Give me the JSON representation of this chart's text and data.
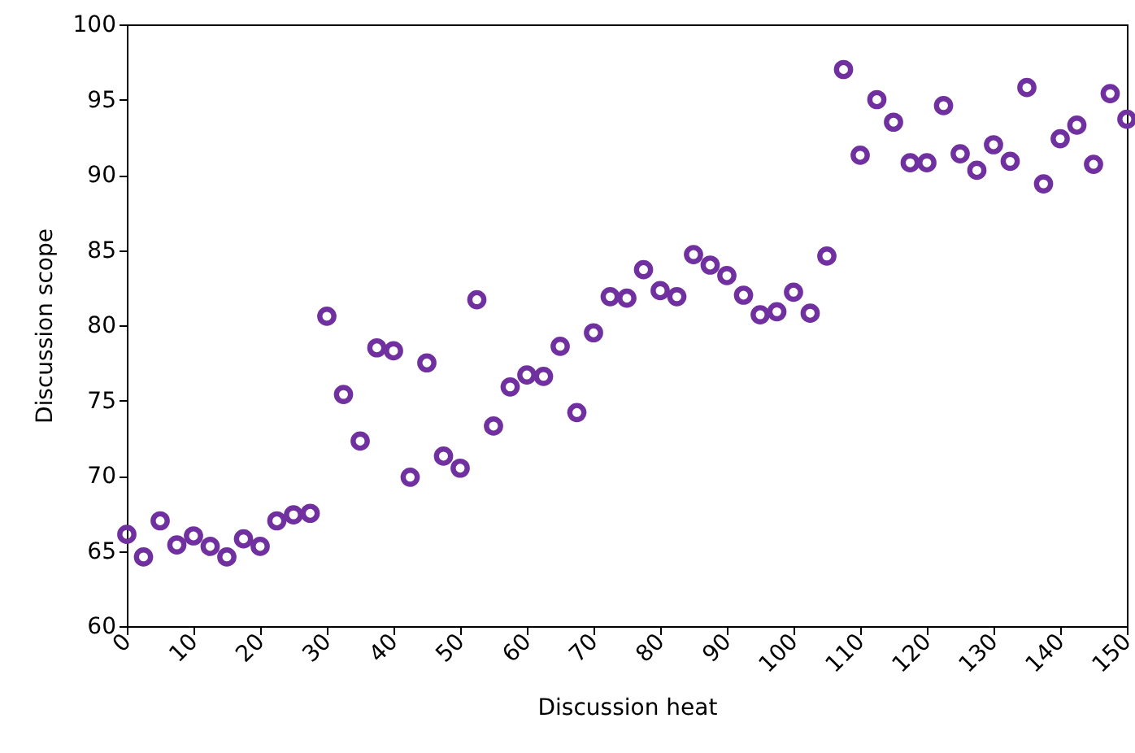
{
  "chart_data": {
    "type": "scatter",
    "xlabel": "Discussion heat",
    "ylabel": "Discussion scope",
    "x": [
      0,
      2.5,
      5,
      7.5,
      10,
      12.5,
      15,
      17.5,
      20,
      22.5,
      25,
      27.5,
      30,
      32.5,
      35,
      37.5,
      40,
      42.5,
      45,
      47.5,
      50,
      52.5,
      55,
      57.5,
      60,
      62.5,
      65,
      67.5,
      70,
      72.5,
      75,
      77.5,
      80,
      82.5,
      85,
      87.5,
      90,
      92.5,
      95,
      97.5,
      100,
      102.5,
      105,
      107.5,
      110,
      112.5,
      115,
      117.5,
      120,
      122.5,
      125,
      127.5,
      130,
      132.5,
      135,
      137.5,
      140,
      142.5,
      145,
      147.5,
      150
    ],
    "series": [
      {
        "color": "#7030a0",
        "values": [
          66.1,
          64.6,
          67.0,
          65.4,
          66.0,
          65.3,
          64.6,
          65.8,
          65.3,
          67.0,
          67.4,
          67.5,
          80.6,
          75.4,
          72.3,
          78.5,
          78.3,
          69.9,
          77.5,
          71.3,
          70.5,
          81.7,
          73.3,
          75.9,
          76.7,
          76.6,
          78.6,
          74.2,
          79.5,
          81.9,
          81.8,
          83.7,
          82.3,
          81.9,
          84.7,
          84.0,
          83.3,
          82.0,
          80.7,
          80.9,
          82.2,
          80.8,
          84.6,
          97.0,
          91.3,
          95.0,
          93.5,
          90.8,
          90.8,
          94.6,
          91.4,
          90.3,
          92.0,
          90.9,
          95.8,
          89.4,
          92.4,
          93.3,
          90.7,
          95.4,
          93.7
        ]
      }
    ],
    "xlim": [
      0,
      150
    ],
    "xticks": [
      0,
      10,
      20,
      30,
      40,
      50,
      60,
      70,
      80,
      90,
      100,
      110,
      120,
      130,
      140,
      150
    ],
    "ylim": [
      60,
      100
    ],
    "yticks": [
      60,
      65,
      70,
      75,
      80,
      85,
      90,
      95,
      100
    ],
    "marker": "circle",
    "grid": false
  }
}
